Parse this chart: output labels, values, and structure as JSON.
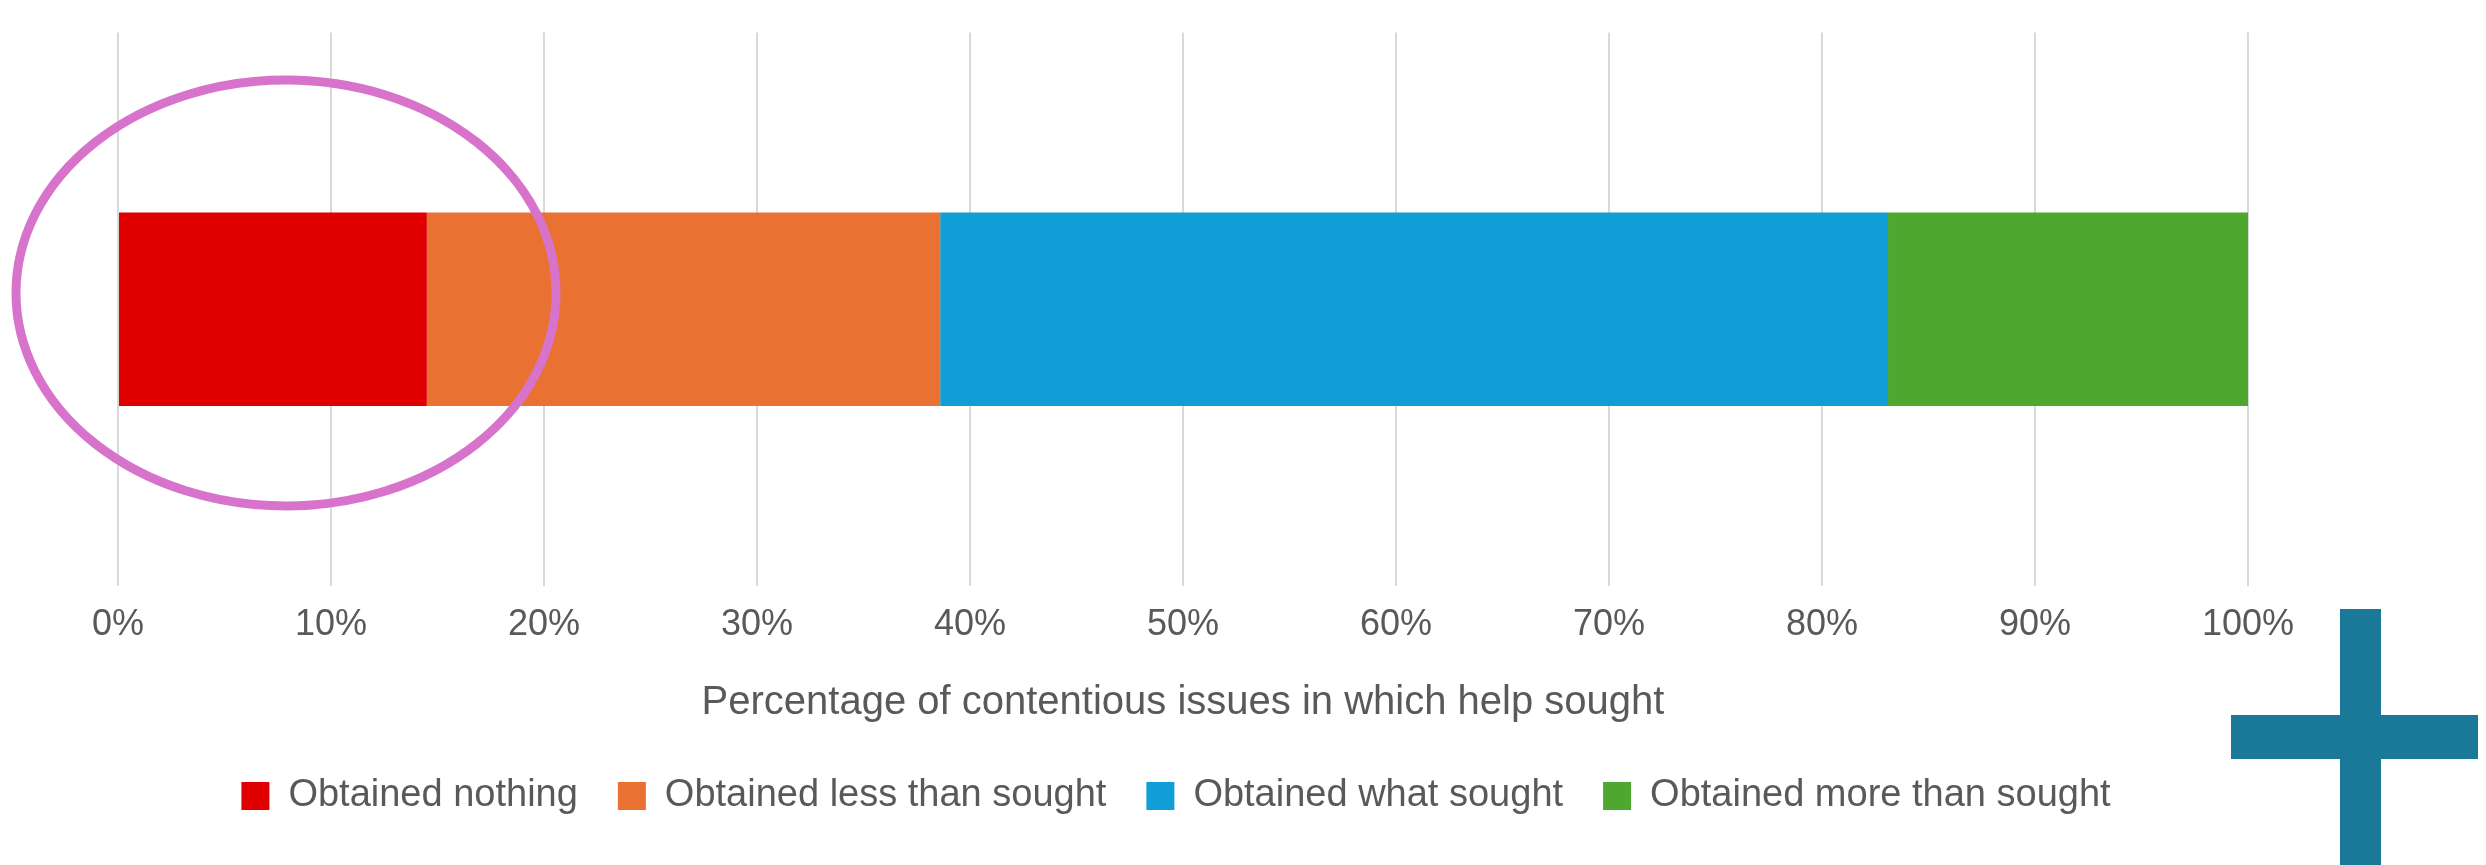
{
  "chart_data": {
    "type": "bar",
    "orientation": "horizontal",
    "stacked": true,
    "xlabel": "Percentage of contentious issues in which help sought",
    "categories": [
      null
    ],
    "series": [
      {
        "name": "Obtained nothing",
        "color": "#e00000",
        "values": [
          14.5
        ]
      },
      {
        "name": "Obtained less than sought",
        "color": "#e97132",
        "values": [
          24.1
        ]
      },
      {
        "name": "Obtained what sought",
        "color": "#0f9ed5",
        "values": [
          44.5
        ]
      },
      {
        "name": "Obtained more than sought",
        "color": "#4ea72e",
        "values": [
          16.9
        ]
      }
    ],
    "xlim": [
      0,
      100
    ],
    "xticks": [
      {
        "value": 0,
        "label": "0%"
      },
      {
        "value": 10,
        "label": "10%"
      },
      {
        "value": 20,
        "label": "20%"
      },
      {
        "value": 30,
        "label": "30%"
      },
      {
        "value": 40,
        "label": "40%"
      },
      {
        "value": 50,
        "label": "50%"
      },
      {
        "value": 60,
        "label": "60%"
      },
      {
        "value": 70,
        "label": "70%"
      },
      {
        "value": 80,
        "label": "80%"
      },
      {
        "value": 90,
        "label": "90%"
      },
      {
        "value": 100,
        "label": "100%"
      }
    ],
    "grid": "x",
    "legend": "bottom"
  }
}
